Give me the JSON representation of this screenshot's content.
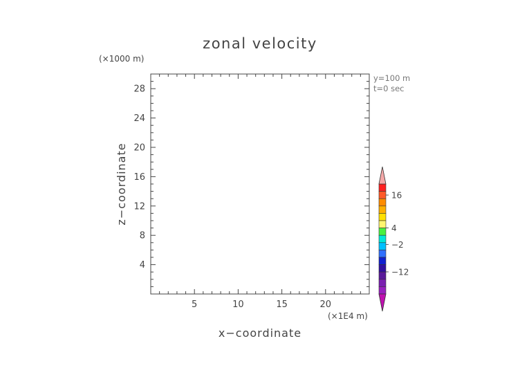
{
  "chart_data": {
    "type": "heatmap",
    "title": "zonal velocity",
    "xlabel": "x−coordinate",
    "ylabel": "z−coordinate",
    "x_unit": "(×1E4 m)",
    "y_unit": "(×1000 m)",
    "xlim": [
      0,
      25
    ],
    "ylim": [
      0,
      30
    ],
    "x_ticks": [
      "5",
      "10",
      "15",
      "20"
    ],
    "y_ticks": [
      "4",
      "8",
      "12",
      "16",
      "20",
      "24",
      "28"
    ],
    "annotations": [
      "y=100 m",
      "t=0 sec"
    ],
    "grid": false,
    "field_values": [],
    "colorbar": {
      "tick_labels": [
        "16",
        "4",
        "−2",
        "−12"
      ],
      "tick_values": [
        16,
        4,
        -2,
        -12
      ],
      "colors": [
        "#ff2020",
        "#ff5a28",
        "#ff8c00",
        "#ffb000",
        "#ffe000",
        "#fff570",
        "#48f040",
        "#00e8d8",
        "#00c0ff",
        "#3070ff",
        "#1020d0",
        "#3010a0",
        "#5a1a9a",
        "#7a20b0",
        "#9820c0"
      ],
      "upper_extend_color": "#f4a8a8",
      "lower_extend_color": "#c010b0"
    }
  }
}
